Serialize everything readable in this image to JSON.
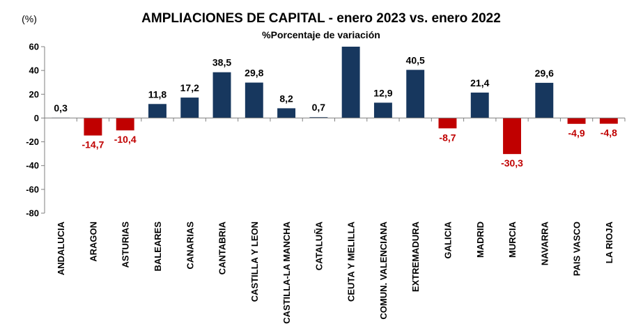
{
  "chart_data": {
    "type": "bar",
    "title": "AMPLIACIONES DE CAPITAL - enero 2023 vs. enero 2022",
    "subtitle": "%Porcentaje de variación",
    "unit_label": "(%)",
    "categories": [
      "ANDALUCIA",
      "ARAGON",
      "ASTURIAS",
      "BALEARES",
      "CANARIAS",
      "CANTABRIA",
      "CASTILLA Y LEON",
      "CASTILLA-LA MANCHA",
      "CATALUÑA",
      "CEUTA Y MELILLA",
      "COMUN. VALENCIANA",
      "EXTREMADURA",
      "GALICIA",
      "MADRID",
      "MURCIA",
      "NAVARRA",
      "PAIS VASCO",
      "LA RIOJA"
    ],
    "values": [
      0.3,
      -14.7,
      -10.4,
      11.8,
      17.2,
      38.5,
      29.8,
      8.2,
      0.7,
      60,
      12.9,
      40.5,
      -8.7,
      21.4,
      -30.3,
      29.6,
      -4.9,
      -4.8
    ],
    "data_labels": [
      "0,3",
      "-14,7",
      "-10,4",
      "11,8",
      "17,2",
      "38,5",
      "29,8",
      "8,2",
      "0,7",
      "",
      "12,9",
      "40,5",
      "-8,7",
      "21,4",
      "-30,3",
      "29,6",
      "-4,9",
      "-4,8"
    ],
    "ylim": [
      -80,
      60
    ],
    "yticks": [
      60,
      40,
      20,
      0,
      -20,
      -40,
      -60,
      -80
    ],
    "grid": false,
    "legend": "none",
    "colors": {
      "positive": "#17375e",
      "negative": "#c00000",
      "positive_label": "#000000",
      "negative_label": "#c00000"
    }
  }
}
